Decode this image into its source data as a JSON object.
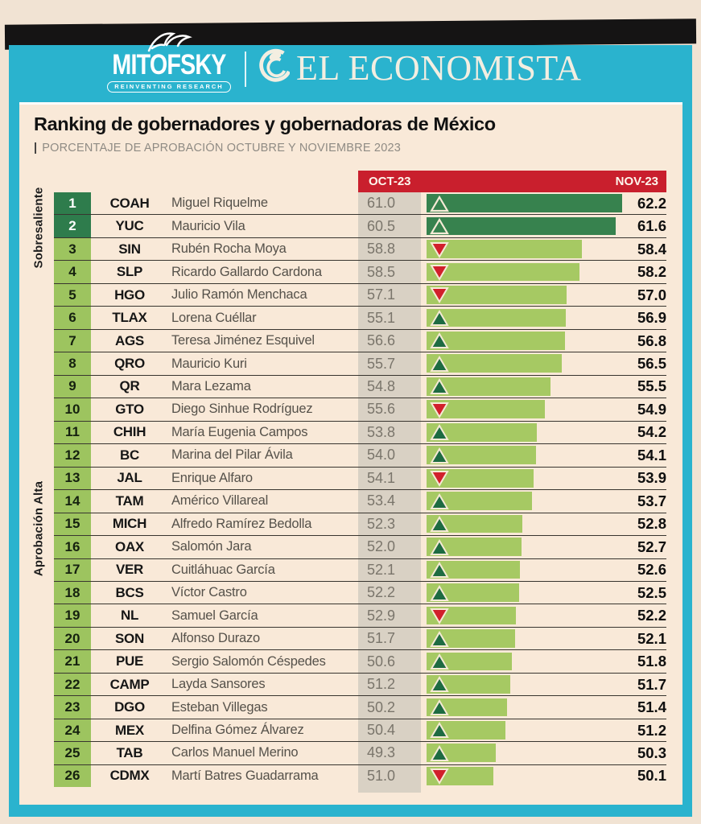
{
  "header": {
    "mitofsky_name": "MITOFSKY",
    "mitofsky_tagline": "REINVENTING RESEARCH",
    "economista_name": "EL ECONOMISTA"
  },
  "card": {
    "title": "Ranking de gobernadores y gobernadoras de México",
    "subtitle_bar": "|",
    "subtitle_text": "PORCENTAJE DE APROBACIÓN OCTUBRE Y NOVIEMBRE 2023",
    "col_oct": "OCT-23",
    "col_nov": "NOV-23",
    "tier_labels": {
      "sobresaliente": "Sobresaliente",
      "alta": "Aprobación Alta"
    }
  },
  "colors": {
    "cyan": "#2ab3ce",
    "red_header": "#c91f2d",
    "page_bg": "#f1e3d3",
    "card_bg": "#f9e9d8",
    "dark_green_rank": "#2e7c4c",
    "dark_green_bar": "#37824e",
    "light_green_rank": "#9dc45f",
    "light_green_bar": "#a6c963",
    "gray_column": "#d9d1c4",
    "triangle_up": "#1e6b42",
    "triangle_down": "#d1202b",
    "triangle_stroke": "#f6ead6"
  },
  "chart_data": {
    "type": "bar",
    "orientation": "horizontal",
    "title": "Ranking de gobernadores y gobernadoras de México",
    "subtitle": "PORCENTAJE DE APROBACIÓN OCTUBRE Y NOVIEMBRE 2023",
    "legend_position": "top",
    "grid": false,
    "value_range_hint": [
      44,
      63
    ],
    "categories": [
      "COAH",
      "YUC",
      "SIN",
      "SLP",
      "HGO",
      "TLAX",
      "AGS",
      "QRO",
      "QR",
      "GTO",
      "CHIH",
      "BC",
      "JAL",
      "TAM",
      "MICH",
      "OAX",
      "VER",
      "BCS",
      "NL",
      "SON",
      "PUE",
      "CAMP",
      "DGO",
      "MEX",
      "TAB",
      "CDMX"
    ],
    "series": [
      {
        "name": "OCT-23",
        "values": [
          61.0,
          60.5,
          58.8,
          58.5,
          57.1,
          55.1,
          56.6,
          55.7,
          54.8,
          55.6,
          53.8,
          54.0,
          54.1,
          53.4,
          52.3,
          52.0,
          52.1,
          52.2,
          52.9,
          51.7,
          50.6,
          51.2,
          50.2,
          50.4,
          49.3,
          51.0
        ]
      },
      {
        "name": "NOV-23",
        "values": [
          62.2,
          61.6,
          58.4,
          58.2,
          57.0,
          56.9,
          56.8,
          56.5,
          55.5,
          54.9,
          54.2,
          54.1,
          53.9,
          53.7,
          52.8,
          52.7,
          52.6,
          52.5,
          52.2,
          52.1,
          51.8,
          51.7,
          51.4,
          51.2,
          50.3,
          50.1
        ]
      }
    ],
    "rows": [
      {
        "rank": 1,
        "state": "COAH",
        "governor": "Miguel Riquelme",
        "oct": "61.0",
        "nov": "62.2",
        "trend": "up",
        "tier": "sobresaliente"
      },
      {
        "rank": 2,
        "state": "YUC",
        "governor": "Mauricio Vila",
        "oct": "60.5",
        "nov": "61.6",
        "trend": "up",
        "tier": "sobresaliente"
      },
      {
        "rank": 3,
        "state": "SIN",
        "governor": "Rubén Rocha Moya",
        "oct": "58.8",
        "nov": "58.4",
        "trend": "down",
        "tier": "alta"
      },
      {
        "rank": 4,
        "state": "SLP",
        "governor": "Ricardo Gallardo Cardona",
        "oct": "58.5",
        "nov": "58.2",
        "trend": "down",
        "tier": "alta"
      },
      {
        "rank": 5,
        "state": "HGO",
        "governor": "Julio Ramón Menchaca",
        "oct": "57.1",
        "nov": "57.0",
        "trend": "down",
        "tier": "alta"
      },
      {
        "rank": 6,
        "state": "TLAX",
        "governor": "Lorena Cuéllar",
        "oct": "55.1",
        "nov": "56.9",
        "trend": "up",
        "tier": "alta"
      },
      {
        "rank": 7,
        "state": "AGS",
        "governor": "Teresa Jiménez Esquivel",
        "oct": "56.6",
        "nov": "56.8",
        "trend": "up",
        "tier": "alta"
      },
      {
        "rank": 8,
        "state": "QRO",
        "governor": "Mauricio Kuri",
        "oct": "55.7",
        "nov": "56.5",
        "trend": "up",
        "tier": "alta"
      },
      {
        "rank": 9,
        "state": "QR",
        "governor": "Mara Lezama",
        "oct": "54.8",
        "nov": "55.5",
        "trend": "up",
        "tier": "alta"
      },
      {
        "rank": 10,
        "state": "GTO",
        "governor": "Diego Sinhue Rodríguez",
        "oct": "55.6",
        "nov": "54.9",
        "trend": "down",
        "tier": "alta"
      },
      {
        "rank": 11,
        "state": "CHIH",
        "governor": "María Eugenia Campos",
        "oct": "53.8",
        "nov": "54.2",
        "trend": "up",
        "tier": "alta"
      },
      {
        "rank": 12,
        "state": "BC",
        "governor": "Marina del Pilar Ávila",
        "oct": "54.0",
        "nov": "54.1",
        "trend": "up",
        "tier": "alta"
      },
      {
        "rank": 13,
        "state": "JAL",
        "governor": "Enrique Alfaro",
        "oct": "54.1",
        "nov": "53.9",
        "trend": "down",
        "tier": "alta"
      },
      {
        "rank": 14,
        "state": "TAM",
        "governor": "Américo Villareal",
        "oct": "53.4",
        "nov": "53.7",
        "trend": "up",
        "tier": "alta"
      },
      {
        "rank": 15,
        "state": "MICH",
        "governor": "Alfredo Ramírez Bedolla",
        "oct": "52.3",
        "nov": "52.8",
        "trend": "up",
        "tier": "alta"
      },
      {
        "rank": 16,
        "state": "OAX",
        "governor": "Salomón Jara",
        "oct": "52.0",
        "nov": "52.7",
        "trend": "up",
        "tier": "alta"
      },
      {
        "rank": 17,
        "state": "VER",
        "governor": "Cuitláhuac García",
        "oct": "52.1",
        "nov": "52.6",
        "trend": "up",
        "tier": "alta"
      },
      {
        "rank": 18,
        "state": "BCS",
        "governor": "Víctor Castro",
        "oct": "52.2",
        "nov": "52.5",
        "trend": "up",
        "tier": "alta"
      },
      {
        "rank": 19,
        "state": "NL",
        "governor": "Samuel García",
        "oct": "52.9",
        "nov": "52.2",
        "trend": "down",
        "tier": "alta"
      },
      {
        "rank": 20,
        "state": "SON",
        "governor": "Alfonso Durazo",
        "oct": "51.7",
        "nov": "52.1",
        "trend": "up",
        "tier": "alta"
      },
      {
        "rank": 21,
        "state": "PUE",
        "governor": "Sergio Salomón Céspedes",
        "oct": "50.6",
        "nov": "51.8",
        "trend": "up",
        "tier": "alta"
      },
      {
        "rank": 22,
        "state": "CAMP",
        "governor": "Layda Sansores",
        "oct": "51.2",
        "nov": "51.7",
        "trend": "up",
        "tier": "alta"
      },
      {
        "rank": 23,
        "state": "DGO",
        "governor": "Esteban Villegas",
        "oct": "50.2",
        "nov": "51.4",
        "trend": "up",
        "tier": "alta"
      },
      {
        "rank": 24,
        "state": "MEX",
        "governor": "Delfina Gómez Álvarez",
        "oct": "50.4",
        "nov": "51.2",
        "trend": "up",
        "tier": "alta"
      },
      {
        "rank": 25,
        "state": "TAB",
        "governor": "Carlos Manuel Merino",
        "oct": "49.3",
        "nov": "50.3",
        "trend": "up",
        "tier": "alta"
      },
      {
        "rank": 26,
        "state": "CDMX",
        "governor": "Martí Batres Guadarrama",
        "oct": "51.0",
        "nov": "50.1",
        "trend": "down",
        "tier": "alta"
      }
    ]
  }
}
